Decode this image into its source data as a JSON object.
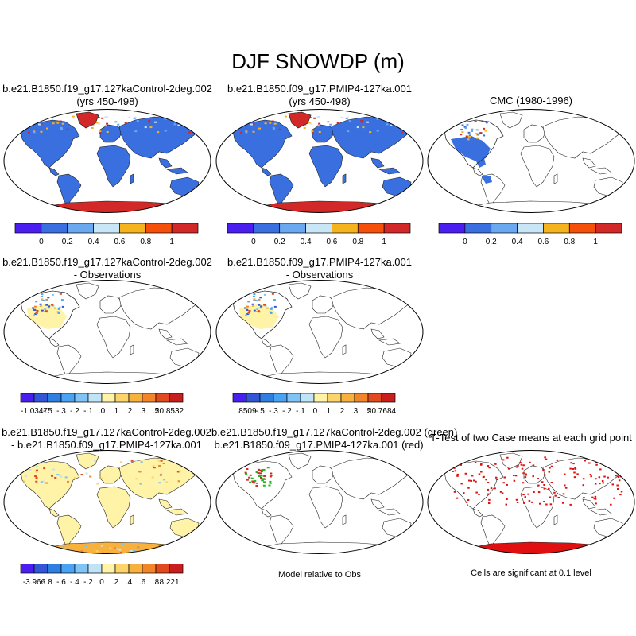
{
  "figure": {
    "title": "DJF SNOWDP (m)"
  },
  "panels": {
    "p1": {
      "line1": "b.e21.B1850.f19_g17.127kaControl-2deg.002",
      "line2": "(yrs 450-498)"
    },
    "p2": {
      "line1": "b.e21.B1850.f09_g17.PMIP4-127ka.001",
      "line2": "(yrs 450-498)"
    },
    "p3": {
      "line1": "CMC (1980-1996)"
    },
    "p4": {
      "line1": "b.e21.B1850.f19_g17.127kaControl-2deg.002",
      "line2": "- Observations"
    },
    "p5": {
      "line1": "b.e21.B1850.f09_g17.PMIP4-127ka.001",
      "line2": "- Observations"
    },
    "p7": {
      "line1": "b.e21.B1850.f19_g17.127kaControl-2deg.002",
      "line2": "- b.e21.B1850.f09_g17.PMIP4-127ka.001"
    },
    "p8": {
      "line1": "b.e21.B1850.f19_g17.127kaControl-2deg.002 (green)",
      "line2": "b.e21.B1850.f09_g17.PMIP4-127ka.001 (red)",
      "note": "Model relative to Obs"
    },
    "p9": {
      "line1": "T-Test of two Case means at each grid point",
      "note": "Cells are significant at 0.1 level"
    }
  },
  "colorbars": {
    "abs": {
      "colors": [
        "#4b1ef0",
        "#3a6fe0",
        "#6aa8f0",
        "#c8e6f5",
        "#f5b41e",
        "#f5500a",
        "#d22828"
      ],
      "labels": [
        "0",
        "0.2",
        "0.4",
        "0.6",
        "0.8",
        "1"
      ]
    },
    "diff1": {
      "colors": [
        "#4b1ef0",
        "#3256d6",
        "#2f7fe0",
        "#4aa3f2",
        "#7fc4f5",
        "#bfe3f7",
        "#fff3a8",
        "#fbd56a",
        "#f8b13c",
        "#f2842a",
        "#e04a1e",
        "#c81e1e"
      ],
      "labels": [
        "-1.0347",
        "-.5",
        "-.3",
        "-.2",
        "-.1",
        ".0",
        ".1",
        ".2",
        ".3",
        ".5",
        "20.8532"
      ]
    },
    "diff2": {
      "colors": [
        "#4b1ef0",
        "#3256d6",
        "#2f7fe0",
        "#4aa3f2",
        "#7fc4f5",
        "#bfe3f7",
        "#fff3a8",
        "#fbd56a",
        "#f8b13c",
        "#f2842a",
        "#e04a1e",
        "#c81e1e"
      ],
      "labels": [
        ".8509",
        "-.5",
        "-.3",
        "-.2",
        "-.1",
        ".0",
        ".1",
        ".2",
        ".3",
        ".5",
        "20.7684"
      ]
    },
    "diff3": {
      "colors": [
        "#4b1ef0",
        "#3256d6",
        "#2f7fe0",
        "#4aa3f2",
        "#7fc4f5",
        "#bfe3f7",
        "#fff3a8",
        "#fbd56a",
        "#f8b13c",
        "#f2842a",
        "#e04a1e",
        "#c81e1e"
      ],
      "labels": [
        "-3.966",
        "-.8",
        "-.6",
        "-.4",
        "-.2",
        "0",
        ".2",
        ".4",
        ".6",
        ".8",
        "8.221"
      ]
    }
  }
}
